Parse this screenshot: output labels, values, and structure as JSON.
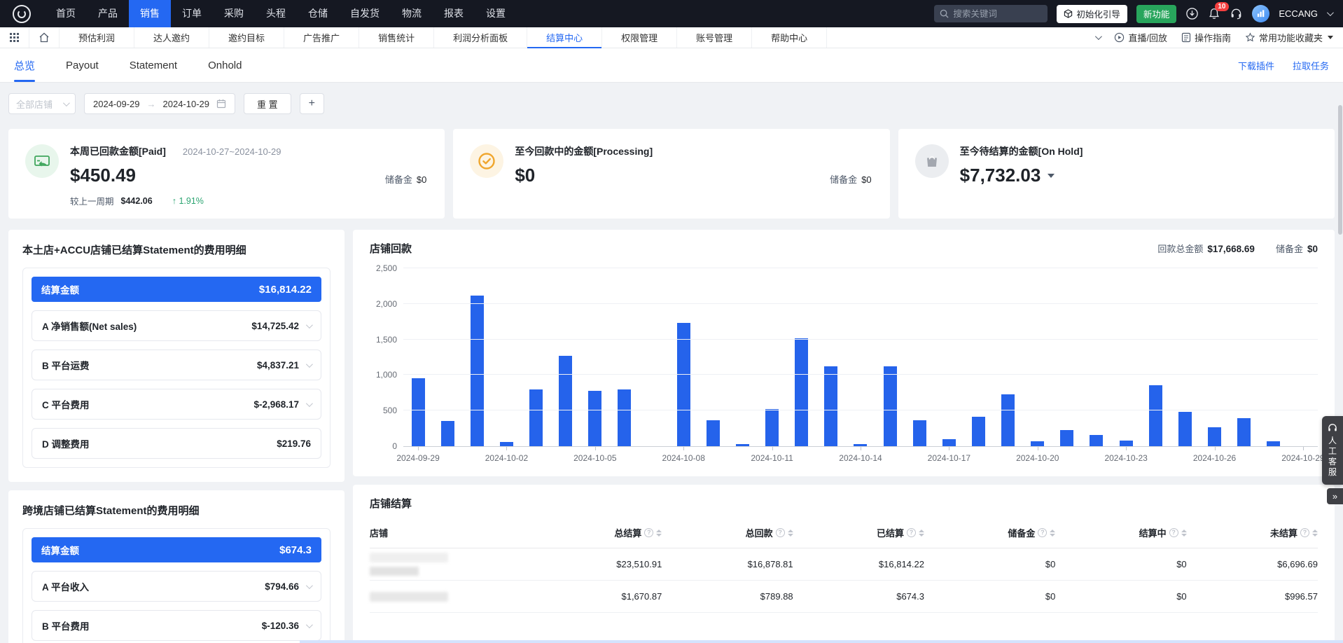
{
  "topnav": {
    "items": [
      {
        "label": "首页",
        "active": false
      },
      {
        "label": "产品",
        "active": false
      },
      {
        "label": "销售",
        "active": true
      },
      {
        "label": "订单",
        "active": false
      },
      {
        "label": "采购",
        "active": false
      },
      {
        "label": "头程",
        "active": false
      },
      {
        "label": "仓储",
        "active": false
      },
      {
        "label": "自发货",
        "active": false
      },
      {
        "label": "物流",
        "active": false
      },
      {
        "label": "报表",
        "active": false
      },
      {
        "label": "设置",
        "active": false
      }
    ],
    "search_placeholder": "搜索关键词",
    "init_guide_label": "初始化引导",
    "new_feature_label": "新功能",
    "notification_count": "10",
    "account_name": "ECCANG"
  },
  "subnav": {
    "items": [
      {
        "label": "预估利润",
        "active": false
      },
      {
        "label": "达人邀约",
        "active": false
      },
      {
        "label": "邀约目标",
        "active": false
      },
      {
        "label": "广告推广",
        "active": false
      },
      {
        "label": "销售统计",
        "active": false
      },
      {
        "label": "利润分析面板",
        "active": false
      },
      {
        "label": "结算中心",
        "active": true
      },
      {
        "label": "权限管理",
        "active": false
      },
      {
        "label": "账号管理",
        "active": false
      },
      {
        "label": "帮助中心",
        "active": false
      }
    ],
    "live_label": "直播/回放",
    "guide_label": "操作指南",
    "favorites_label": "常用功能收藏夹"
  },
  "tabs": [
    {
      "label": "总览",
      "active": true
    },
    {
      "label": "Payout",
      "active": false
    },
    {
      "label": "Statement",
      "active": false
    },
    {
      "label": "Onhold",
      "active": false
    }
  ],
  "tab_links": {
    "download": "下载插件",
    "pull": "拉取任务"
  },
  "filters": {
    "shop_placeholder": "全部店铺",
    "date_start": "2024-09-29",
    "date_end": "2024-10-29",
    "reset_label": "重 置",
    "add_label": "+"
  },
  "cards": {
    "paid": {
      "title": "本周已回款金额[Paid]",
      "period": "2024-10-27~2024-10-29",
      "amount": "$450.49",
      "compare_label": "较上一周期",
      "compare_value": "$442.06",
      "change_pct": "1.91%",
      "reserve_label": "储备金",
      "reserve_value": "$0"
    },
    "processing": {
      "title": "至今回款中的金额[Processing]",
      "amount": "$0",
      "reserve_label": "储备金",
      "reserve_value": "$0"
    },
    "onhold": {
      "title": "至今待结算的金额[On Hold]",
      "amount": "$7,732.03"
    }
  },
  "panel_local": {
    "title": "本土店+ACCU店铺已结算Statement的费用明细",
    "summary_label": "结算金额",
    "summary_value": "$16,814.22",
    "items": [
      {
        "label": "A 净销售额(Net sales)",
        "value": "$14,725.42",
        "expandable": true
      },
      {
        "label": "B 平台运费",
        "value": "$4,837.21",
        "expandable": true
      },
      {
        "label": "C 平台费用",
        "value": "$-2,968.17",
        "expandable": true
      },
      {
        "label": "D 调整费用",
        "value": "$219.76",
        "expandable": false
      }
    ]
  },
  "panel_cross": {
    "title": "跨境店铺已结算Statement的费用明细",
    "summary_label": "结算金额",
    "summary_value": "$674.3",
    "items": [
      {
        "label": "A 平台收入",
        "value": "$794.66",
        "expandable": true
      },
      {
        "label": "B 平台费用",
        "value": "$-120.36",
        "expandable": true
      }
    ]
  },
  "payout_panel": {
    "title": "店铺回款",
    "total_label": "回款总金额",
    "total_value": "$17,668.69",
    "reserve_label": "储备金",
    "reserve_value": "$0"
  },
  "chart_data": {
    "type": "bar",
    "title": "店铺回款",
    "xlabel": "",
    "ylabel": "",
    "ylim": [
      0,
      2500
    ],
    "yticks": [
      0,
      500,
      1000,
      1500,
      2000,
      2500
    ],
    "ytick_labels": [
      "0",
      "500",
      "1,000",
      "1,500",
      "2,000",
      "2,500"
    ],
    "grid": true,
    "legend_position": "none",
    "bar_color": "#2563eb",
    "x": [
      "2024-09-29",
      "2024-09-30",
      "2024-10-01",
      "2024-10-02",
      "2024-10-03",
      "2024-10-04",
      "2024-10-05",
      "2024-10-06",
      "2024-10-07",
      "2024-10-08",
      "2024-10-09",
      "2024-10-10",
      "2024-10-11",
      "2024-10-12",
      "2024-10-13",
      "2024-10-14",
      "2024-10-15",
      "2024-10-16",
      "2024-10-17",
      "2024-10-18",
      "2024-10-19",
      "2024-10-20",
      "2024-10-21",
      "2024-10-22",
      "2024-10-23",
      "2024-10-24",
      "2024-10-25",
      "2024-10-26",
      "2024-10-27",
      "2024-10-28",
      "2024-10-29"
    ],
    "values": [
      950,
      350,
      2110,
      60,
      790,
      1260,
      770,
      790,
      0,
      1730,
      365,
      25,
      515,
      1510,
      1115,
      25,
      1120,
      365,
      100,
      410,
      730,
      65,
      230,
      155,
      75,
      855,
      485,
      260,
      390,
      70,
      0
    ],
    "x_tick_label_every": 3
  },
  "settle_panel": {
    "title": "店铺结算",
    "columns": [
      "店铺",
      "总结算",
      "总回款",
      "已结算",
      "储备金",
      "结算中",
      "未结算"
    ],
    "rows": [
      {
        "shop_redacted": true,
        "values": [
          "$23,510.91",
          "$16,878.81",
          "$16,814.22",
          "$0",
          "$0",
          "$6,696.69"
        ]
      },
      {
        "shop_redacted": true,
        "values": [
          "$1,670.87",
          "$789.88",
          "$674.3",
          "$0",
          "$0",
          "$996.57"
        ]
      }
    ]
  },
  "floating": {
    "service_label": "人工客服",
    "expand_label": "»"
  }
}
